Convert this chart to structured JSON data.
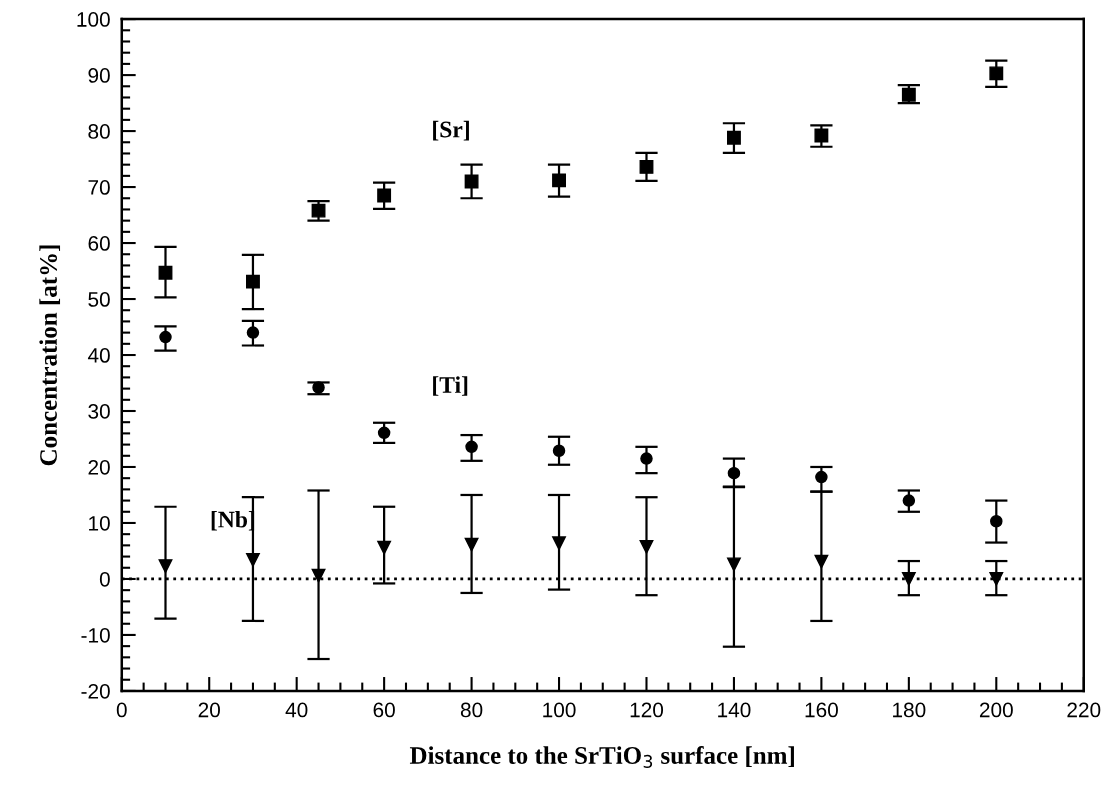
{
  "chart_data": {
    "type": "scatter",
    "xlabel": "Distance to the SrTiO$_{3}$ surface [nm]",
    "ylabel": "Concentration [at%]",
    "x": [
      10,
      30,
      45,
      60,
      80,
      100,
      120,
      140,
      160,
      180,
      200
    ],
    "series": [
      {
        "name": "[Sr]",
        "color": "#000000",
        "marker": "square",
        "values": [
          54.7,
          53.1,
          65.8,
          68.5,
          71.0,
          71.2,
          73.6,
          78.8,
          79.2,
          86.5,
          90.3
        ],
        "errors": [
          [
            50.3,
            59.3
          ],
          [
            48.2,
            57.9
          ],
          [
            64.0,
            67.5
          ],
          [
            66.1,
            70.8
          ],
          [
            68.0,
            74.0
          ],
          [
            68.3,
            74.0
          ],
          [
            71.1,
            76.1
          ],
          [
            76.1,
            81.4
          ],
          [
            77.2,
            81.0
          ],
          [
            85.0,
            88.2
          ],
          [
            87.9,
            92.6
          ]
        ]
      },
      {
        "name": "[Ti]",
        "color": "#000000",
        "marker": "circle",
        "values": [
          43.2,
          44.0,
          34.2,
          26.1,
          23.6,
          22.9,
          21.5,
          18.9,
          18.2,
          14.0,
          10.3
        ],
        "errors": [
          [
            40.8,
            45.1
          ],
          [
            41.7,
            46.1
          ],
          [
            33.0,
            35.1
          ],
          [
            24.3,
            27.9
          ],
          [
            21.1,
            25.7
          ],
          [
            20.4,
            25.4
          ],
          [
            18.9,
            23.6
          ],
          [
            16.4,
            21.5
          ],
          [
            15.6,
            20.0
          ],
          [
            12.0,
            15.8
          ],
          [
            6.5,
            14.0
          ]
        ]
      },
      {
        "name": "[Nb]",
        "color": "#000000",
        "marker": "triangle",
        "values": [
          2.3,
          3.4,
          0.6,
          5.6,
          6.1,
          6.4,
          5.7,
          2.6,
          3.1,
          0.0,
          0.0
        ],
        "errors": [
          [
            -7.1,
            12.9
          ],
          [
            -7.5,
            14.6
          ],
          [
            -14.3,
            15.8
          ],
          [
            -0.8,
            12.9
          ],
          [
            -2.5,
            15.0
          ],
          [
            -1.9,
            15.0
          ],
          [
            -2.9,
            14.6
          ],
          [
            -12.1,
            16.5
          ],
          [
            -7.5,
            15.6
          ],
          [
            -2.9,
            3.2
          ],
          [
            -2.9,
            3.2
          ]
        ]
      }
    ],
    "xlim": [
      0,
      220
    ],
    "xticks": [
      0,
      20,
      40,
      60,
      80,
      100,
      120,
      140,
      160,
      180,
      200,
      220
    ],
    "ylim": [
      -20,
      100
    ],
    "yticks": [
      -20,
      -10,
      0,
      10,
      20,
      30,
      40,
      50,
      60,
      70,
      80,
      90,
      100
    ],
    "ref_lines": [
      {
        "axis": "y",
        "value": 0,
        "color": "#000000",
        "line_style": "dotted"
      }
    ],
    "grid": false,
    "legend": false
  }
}
